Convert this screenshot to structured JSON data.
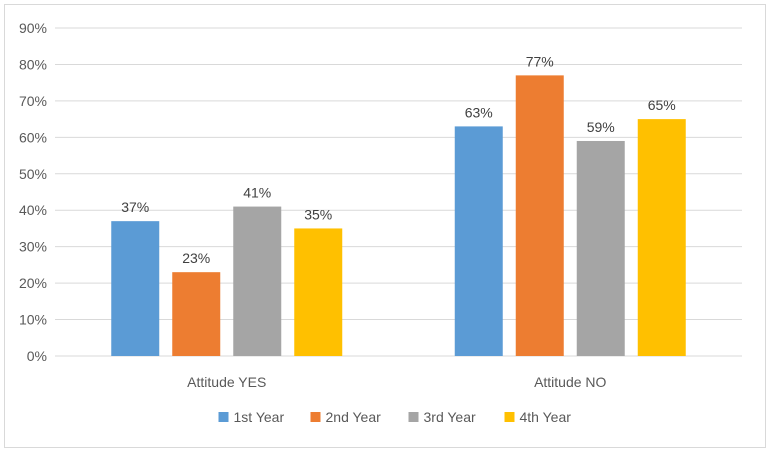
{
  "chart_data": {
    "type": "bar",
    "title": "",
    "xlabel": "",
    "ylabel": "",
    "categories": [
      "Attitude YES",
      "Attitude NO"
    ],
    "series": [
      {
        "name": "1st Year",
        "values": [
          37,
          63
        ],
        "color": "#5b9bd5"
      },
      {
        "name": "2nd Year",
        "values": [
          23,
          77
        ],
        "color": "#ed7d31"
      },
      {
        "name": "3rd Year",
        "values": [
          41,
          59
        ],
        "color": "#a5a5a5"
      },
      {
        "name": "4th Year",
        "values": [
          35,
          65
        ],
        "color": "#ffc000"
      }
    ],
    "ylim": [
      0,
      90
    ],
    "yticks": [
      0,
      10,
      20,
      30,
      40,
      50,
      60,
      70,
      80,
      90
    ],
    "value_format": "percent",
    "grid": true,
    "legend_position": "bottom",
    "axis_color": "#d9d9d9",
    "text_color": "#595959"
  }
}
